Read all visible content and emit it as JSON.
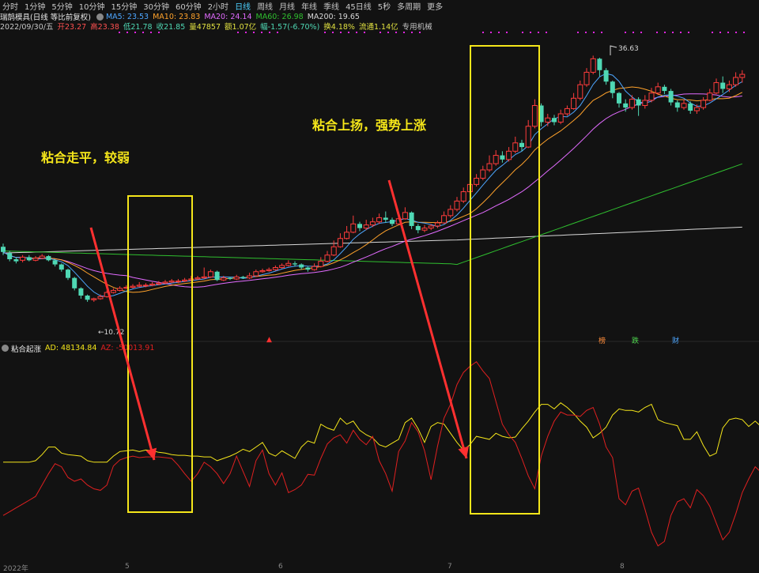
{
  "toolbar": {
    "periods": [
      "分时",
      "1分钟",
      "5分钟",
      "10分钟",
      "15分钟",
      "30分钟",
      "60分钟",
      "2小时",
      "日线",
      "周线",
      "月线",
      "年线",
      "季线",
      "45日线",
      "5秒",
      "多周期",
      "更多"
    ],
    "active": "日线"
  },
  "quote": {
    "name": "瑞鹄模具(日线 等比前复权)",
    "ma5_label": "MA5: 23.53",
    "ma10_label": "MA10: 23.83",
    "ma20_label": "MA20: 24.14",
    "ma60_label": "MA60: 26.98",
    "ma200_label": "MA200: 19.65",
    "date": "2022/09/30/五",
    "open": "开23.27",
    "high": "高23.38",
    "low": "低21.78",
    "close": "收21.85",
    "volume": "量47857",
    "amount": "额1.07亿",
    "change": "幅-1.57(-6.70%)",
    "turnover": "换4.18%",
    "float": "流通1.14亿",
    "sector": "专用机械"
  },
  "indicator": {
    "name": "粘合起涨",
    "ad_label": "AD: 48134.84",
    "az_label": "AZ: -50013.91"
  },
  "annotations": {
    "left": "粘合走平，较弱",
    "right": "粘合上扬，强势上涨"
  },
  "price_labels": {
    "high": "36.63",
    "low": "10.72"
  },
  "badges": [
    "榜",
    "跌",
    "财"
  ],
  "x_labels": [
    "2022年",
    "5",
    "6",
    "7",
    "8"
  ],
  "colors": {
    "up": "#ff3c3c",
    "down": "#4fd8b4",
    "ma5": "#4da6ff",
    "ma10": "#ffa22b",
    "ma20": "#e26bff",
    "ma60": "#2fbf2f",
    "ma200": "#d8d8d8",
    "box": "#f5e61a",
    "arrow": "#ff3030",
    "ad": "#f5e61a",
    "az": "#e02020"
  },
  "chart_data": {
    "type": "candlestick",
    "candles": [
      [
        18.2,
        17.7,
        18.5,
        17.4
      ],
      [
        17.6,
        17.0,
        17.8,
        16.8
      ],
      [
        17.0,
        16.8,
        17.2,
        16.6
      ],
      [
        16.9,
        17.2,
        17.4,
        16.7
      ],
      [
        17.2,
        16.9,
        17.4,
        16.8
      ],
      [
        16.9,
        17.1,
        17.3,
        16.8
      ],
      [
        17.1,
        17.3,
        17.5,
        17.0
      ],
      [
        17.3,
        16.9,
        17.4,
        16.8
      ],
      [
        16.9,
        16.5,
        17.0,
        16.3
      ],
      [
        16.5,
        16.0,
        16.6,
        15.8
      ],
      [
        16.0,
        15.2,
        16.1,
        15.0
      ],
      [
        15.2,
        14.2,
        15.3,
        14.0
      ],
      [
        14.2,
        13.5,
        14.3,
        13.2
      ],
      [
        13.5,
        13.1,
        13.6,
        12.9
      ],
      [
        13.1,
        13.2,
        13.3,
        12.9
      ],
      [
        13.2,
        13.4,
        13.6,
        13.1
      ],
      [
        13.4,
        13.8,
        14.0,
        13.3
      ],
      [
        13.8,
        14.0,
        14.2,
        13.7
      ],
      [
        14.0,
        14.2,
        14.4,
        13.9
      ],
      [
        14.2,
        14.3,
        14.5,
        14.1
      ],
      [
        14.3,
        14.4,
        14.6,
        14.2
      ],
      [
        14.4,
        14.5,
        14.8,
        14.3
      ],
      [
        14.5,
        14.5,
        14.7,
        14.3
      ],
      [
        14.5,
        14.6,
        14.8,
        14.4
      ],
      [
        14.6,
        14.7,
        14.9,
        14.5
      ],
      [
        14.7,
        14.8,
        15.0,
        14.6
      ],
      [
        14.8,
        14.9,
        15.1,
        14.7
      ],
      [
        14.9,
        14.9,
        15.1,
        14.7
      ],
      [
        14.9,
        15.0,
        15.2,
        14.8
      ],
      [
        15.0,
        15.1,
        15.4,
        14.9
      ],
      [
        15.1,
        15.2,
        15.4,
        15.0
      ],
      [
        15.2,
        15.3,
        16.2,
        15.1
      ],
      [
        15.3,
        15.8,
        16.0,
        15.2
      ],
      [
        15.8,
        15.0,
        15.9,
        14.9
      ],
      [
        15.0,
        15.2,
        15.4,
        14.9
      ],
      [
        15.2,
        15.1,
        15.3,
        15.0
      ],
      [
        15.1,
        15.3,
        15.5,
        15.0
      ],
      [
        15.3,
        15.2,
        15.4,
        15.1
      ],
      [
        15.2,
        15.4,
        15.7,
        15.1
      ],
      [
        15.4,
        15.8,
        16.0,
        15.3
      ],
      [
        15.8,
        15.9,
        16.1,
        15.7
      ],
      [
        15.9,
        16.0,
        16.2,
        15.8
      ],
      [
        16.0,
        16.2,
        16.4,
        15.9
      ],
      [
        16.2,
        16.4,
        16.6,
        16.1
      ],
      [
        16.4,
        16.6,
        16.9,
        16.3
      ],
      [
        16.6,
        16.5,
        16.8,
        16.3
      ],
      [
        16.5,
        16.2,
        16.6,
        16.0
      ],
      [
        16.2,
        16.0,
        16.3,
        15.8
      ],
      [
        16.0,
        16.3,
        16.6,
        15.9
      ],
      [
        16.3,
        16.8,
        17.2,
        16.2
      ],
      [
        16.8,
        17.4,
        17.8,
        16.7
      ],
      [
        17.4,
        18.2,
        18.8,
        17.3
      ],
      [
        18.2,
        19.0,
        19.5,
        18.1
      ],
      [
        19.0,
        19.6,
        20.2,
        18.9
      ],
      [
        19.6,
        20.4,
        21.2,
        19.5
      ],
      [
        20.4,
        20.0,
        20.6,
        19.7
      ],
      [
        20.0,
        20.3,
        20.8,
        19.8
      ],
      [
        20.3,
        20.6,
        21.0,
        20.1
      ],
      [
        20.6,
        21.0,
        21.4,
        20.4
      ],
      [
        21.0,
        20.8,
        21.6,
        20.5
      ],
      [
        20.8,
        20.4,
        21.0,
        20.2
      ],
      [
        20.4,
        20.9,
        21.2,
        20.3
      ],
      [
        20.9,
        21.5,
        22.0,
        20.8
      ],
      [
        21.5,
        20.2,
        21.6,
        19.9
      ],
      [
        20.2,
        19.8,
        20.4,
        19.5
      ],
      [
        19.8,
        20.0,
        20.3,
        19.6
      ],
      [
        20.0,
        20.2,
        20.4,
        19.8
      ],
      [
        20.2,
        20.5,
        20.7,
        20.0
      ],
      [
        20.5,
        21.2,
        21.6,
        20.4
      ],
      [
        21.2,
        21.8,
        22.2,
        21.0
      ],
      [
        21.8,
        22.6,
        23.0,
        21.6
      ],
      [
        22.6,
        23.5,
        23.9,
        22.4
      ],
      [
        23.5,
        24.2,
        24.6,
        23.3
      ],
      [
        24.2,
        24.8,
        25.2,
        24.0
      ],
      [
        24.8,
        25.6,
        26.0,
        24.6
      ],
      [
        25.6,
        26.2,
        27.0,
        25.4
      ],
      [
        26.2,
        27.0,
        27.5,
        26.0
      ],
      [
        27.0,
        26.6,
        27.4,
        26.3
      ],
      [
        26.6,
        27.4,
        27.8,
        26.4
      ],
      [
        27.4,
        28.2,
        28.8,
        27.2
      ],
      [
        28.2,
        27.8,
        28.5,
        27.4
      ],
      [
        27.8,
        29.8,
        30.4,
        27.7
      ],
      [
        29.8,
        31.8,
        32.4,
        29.6
      ],
      [
        31.8,
        30.2,
        32.0,
        29.8
      ],
      [
        30.2,
        30.6,
        31.0,
        29.8
      ],
      [
        30.6,
        30.2,
        30.9,
        29.9
      ],
      [
        30.2,
        31.0,
        31.4,
        30.0
      ],
      [
        31.0,
        31.5,
        31.8,
        30.8
      ],
      [
        31.5,
        32.5,
        33.0,
        31.4
      ],
      [
        32.5,
        33.8,
        34.2,
        32.3
      ],
      [
        33.8,
        35.0,
        35.4,
        33.6
      ],
      [
        35.0,
        36.3,
        36.6,
        34.8
      ],
      [
        36.3,
        35.2,
        36.4,
        34.6
      ],
      [
        35.2,
        34.1,
        35.4,
        33.8
      ],
      [
        34.1,
        33.0,
        34.2,
        32.5
      ],
      [
        33.0,
        32.0,
        33.1,
        31.6
      ],
      [
        32.0,
        31.6,
        32.4,
        31.2
      ],
      [
        31.6,
        32.4,
        32.8,
        31.4
      ],
      [
        32.4,
        31.8,
        32.6,
        30.8
      ],
      [
        31.8,
        32.3,
        32.8,
        31.5
      ],
      [
        32.3,
        33.0,
        33.5,
        32.1
      ],
      [
        33.0,
        33.6,
        34.0,
        32.8
      ],
      [
        33.6,
        33.2,
        33.8,
        32.9
      ],
      [
        33.2,
        32.1,
        33.4,
        31.8
      ],
      [
        32.1,
        31.6,
        32.3,
        31.2
      ],
      [
        31.6,
        32.0,
        32.4,
        31.4
      ],
      [
        32.0,
        31.3,
        32.2,
        31.0
      ],
      [
        31.3,
        31.6,
        31.9,
        31.0
      ],
      [
        31.6,
        32.3,
        32.6,
        31.4
      ],
      [
        32.3,
        33.0,
        33.4,
        32.2
      ],
      [
        33.0,
        34.0,
        34.4,
        32.9
      ],
      [
        34.0,
        33.4,
        34.6,
        33.0
      ],
      [
        33.4,
        33.8,
        34.2,
        33.1
      ],
      [
        33.8,
        34.5,
        35.0,
        33.6
      ],
      [
        34.5,
        34.8,
        35.2,
        34.0
      ]
    ],
    "ad": [
      1.0,
      1.0,
      1.0,
      1.0,
      1.0,
      1.2,
      2.0,
      3.0,
      3.0,
      2.2,
      2.0,
      1.9,
      1.8,
      1.2,
      1.0,
      1.0,
      1.0,
      1.8,
      2.4,
      2.5,
      2.6,
      2.4,
      2.6,
      2.5,
      2.3,
      2.2,
      2.0,
      1.9,
      1.9,
      1.8,
      1.8,
      1.7,
      1.7,
      1.2,
      1.5,
      1.8,
      2.2,
      2.7,
      2.4,
      3.0,
      3.6,
      2.2,
      1.8,
      2.5,
      2.0,
      1.5,
      3.0,
      3.8,
      3.5,
      6.0,
      5.5,
      5.2,
      6.8,
      6.0,
      6.4,
      5.2,
      4.6,
      4.2,
      3.3,
      3.0,
      3.5,
      4.0,
      6.2,
      6.8,
      5.4,
      3.6,
      5.7,
      6.2,
      6.0,
      4.8,
      3.6,
      2.6,
      3.3,
      4.4,
      4.2,
      4.0,
      4.8,
      4.4,
      4.2,
      4.3,
      5.4,
      6.4,
      7.6,
      8.6,
      8.6,
      8.0,
      8.8,
      8.2,
      7.4,
      6.4,
      5.6,
      4.2,
      4.8,
      5.6,
      7.2,
      8.0,
      7.8,
      7.8,
      7.6,
      8.2,
      8.6,
      6.6,
      6.2,
      6.0,
      5.8,
      4.0,
      4.0,
      5.0,
      3.2,
      1.8,
      2.2,
      5.5,
      6.6,
      6.8,
      6.6,
      5.7,
      6.4,
      5.6
    ],
    "az": [
      -6,
      -5.5,
      -5,
      -4.5,
      -4,
      -3.5,
      -2,
      -0.5,
      0.8,
      0.4,
      -1,
      -1.5,
      -1.2,
      -2.0,
      -2.5,
      -2.7,
      -2.0,
      0.5,
      1.3,
      1.6,
      1.8,
      1.6,
      1.7,
      1.7,
      1.7,
      1.6,
      1.5,
      0.6,
      -0.5,
      -1.5,
      -0.5,
      1.0,
      0.4,
      -0.5,
      -1.8,
      -0.5,
      1.8,
      -0.2,
      -2.2,
      1.2,
      2.6,
      -0.5,
      -2.0,
      -0.4,
      -3.0,
      -2.6,
      -2.0,
      -0.6,
      -0.7,
      1.5,
      3.4,
      4.2,
      4.6,
      3.5,
      5.2,
      4.0,
      3.3,
      4.4,
      1.2,
      -0.5,
      -2.8,
      2.4,
      3.8,
      6.2,
      5.0,
      2.5,
      -1.3,
      3.1,
      6.8,
      8.6,
      11.2,
      12.8,
      13.6,
      14.2,
      13.0,
      12.0,
      9.0,
      6.0,
      4.6,
      3.6,
      1.5,
      -0.8,
      -2.5,
      1.8,
      4.4,
      6.4,
      7.6,
      7.2,
      7.2,
      7.0,
      7.8,
      8.2,
      6.0,
      3.0,
      1.6,
      -3.8,
      -4.6,
      -2.8,
      -2.4,
      -5.2,
      -8.2,
      -10.0,
      -9.4,
      -6.0,
      -4.2,
      -3.8,
      -5.0,
      -2.6,
      -3.4,
      -4.8,
      -7.0,
      -9.2,
      -8.2,
      -5.8,
      -3.0,
      -1.2,
      0.4,
      -0.4,
      1.6,
      3.2
    ]
  }
}
